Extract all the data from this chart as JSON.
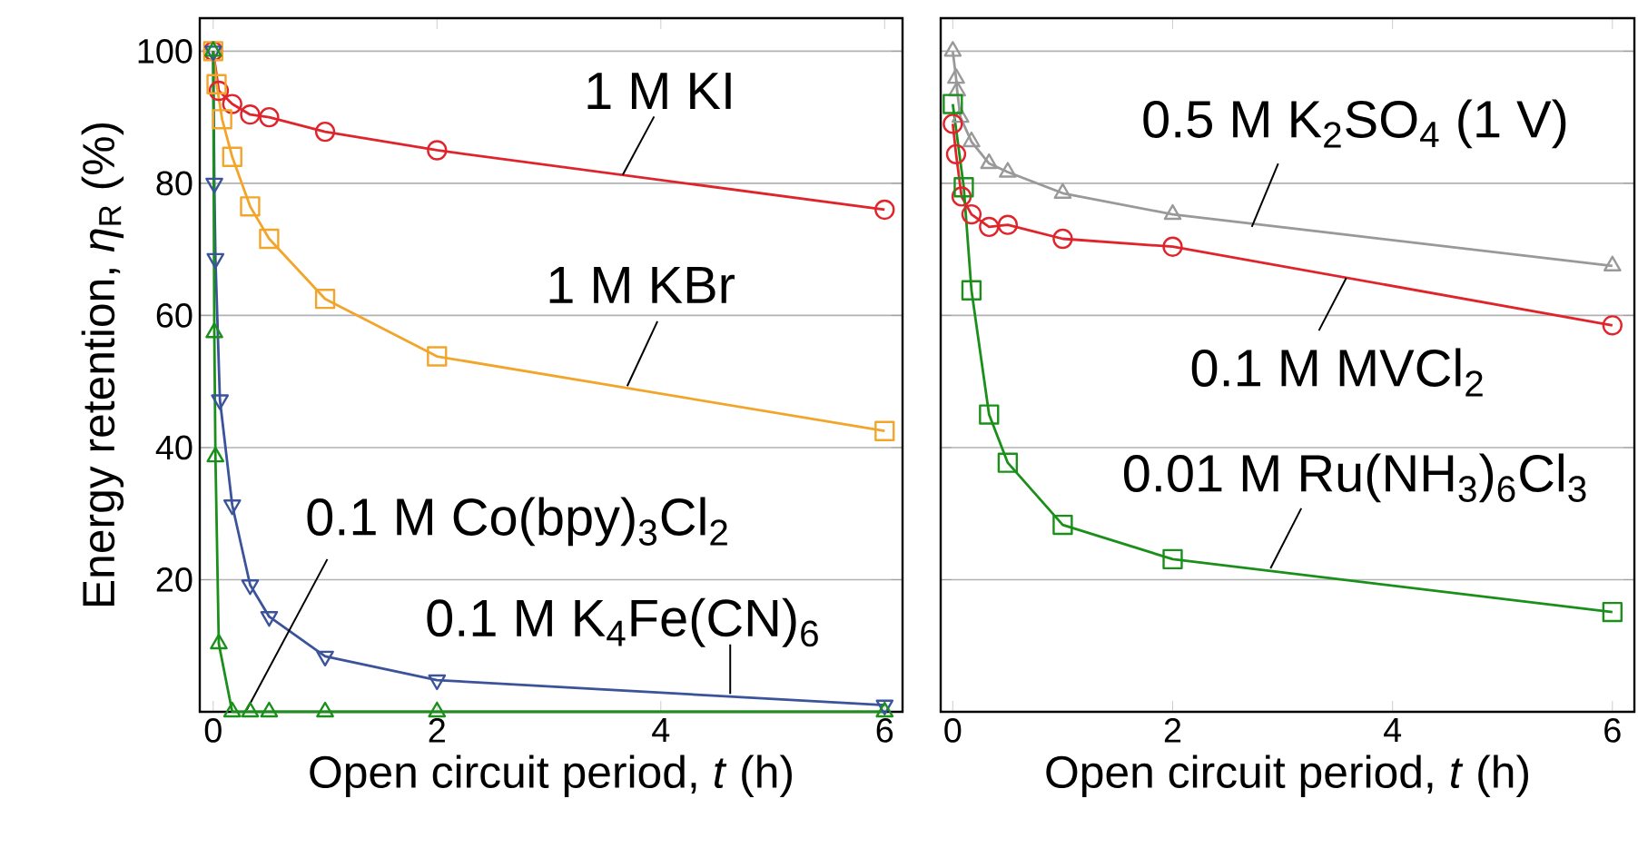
{
  "chart_data": [
    {
      "type": "line",
      "xlabel": "Open circuit period, *t* (h)",
      "ylabel": "Energy retention, *η*$_{R}$ (%)",
      "xlim": [
        -0.12,
        6.16
      ],
      "ylim": [
        0,
        105
      ],
      "xticks": [
        0,
        2,
        4,
        6
      ],
      "yticks": [
        20,
        40,
        60,
        80,
        100
      ],
      "grid": "y",
      "line_style": "solid",
      "series": [
        {
          "name": "1 M KI",
          "color": "#e0242b",
          "marker": "circle",
          "x": [
            0,
            0.05,
            0.17,
            0.33,
            0.5,
            1,
            2,
            6
          ],
          "values": [
            100,
            94,
            92,
            90.4,
            90,
            87.8,
            85,
            76
          ]
        },
        {
          "name": "1 M KBr",
          "color": "#f2a52b",
          "marker": "square",
          "x": [
            0,
            0.03,
            0.08,
            0.17,
            0.33,
            0.5,
            1,
            2,
            6
          ],
          "values": [
            100,
            95,
            89.7,
            84,
            76.5,
            71.6,
            62.5,
            53.8,
            42.5
          ]
        },
        {
          "name": "0.1 M K$_{4}$Fe(CN)$_{6}$",
          "color": "#3a539b",
          "marker": "triangle down",
          "x": [
            0,
            0.01,
            0.02,
            0.06,
            0.17,
            0.33,
            0.5,
            1,
            2,
            6
          ],
          "values": [
            100,
            80,
            68.6,
            47.2,
            31.3,
            19.2,
            14.4,
            8.4,
            4.8,
            1
          ]
        },
        {
          "name": "0.1 M Co(bpy)$_{3}$Cl$_{2}$",
          "color": "#1a8f1a",
          "marker": "triangle",
          "x": [
            0,
            0.01,
            0.02,
            0.05,
            0.17,
            0.33,
            0.5,
            1,
            2,
            6
          ],
          "values": [
            100,
            57.4,
            38.6,
            10.3,
            0,
            0,
            0,
            0,
            0,
            0
          ]
        }
      ]
    },
    {
      "type": "line",
      "xlabel": "Open circuit period, *t* (h)",
      "xlim": [
        -0.11,
        6.2
      ],
      "ylim": [
        0,
        105
      ],
      "xticks": [
        0,
        2,
        4,
        6
      ],
      "yticks": [
        20,
        40,
        60,
        80,
        100
      ],
      "tick_labels": "x",
      "grid": "y",
      "line_style": "solid",
      "series": [
        {
          "name": "0.5 M K$_{2}$SO$_{4}$ (1 V)",
          "color": "#999999",
          "marker": "triangle",
          "x": [
            0,
            0.03,
            0.04,
            0.07,
            0.17,
            0.33,
            0.5,
            1,
            2,
            6
          ],
          "values": [
            100,
            95.9,
            94,
            90,
            86.3,
            83,
            81.7,
            78.5,
            75.3,
            67.5
          ]
        },
        {
          "name": "0.1 M MVCl$_{2}$",
          "color": "#e0242b",
          "marker": "circle",
          "x": [
            0,
            0.03,
            0.08,
            0.17,
            0.33,
            0.5,
            1,
            2,
            6
          ],
          "values": [
            89,
            84.4,
            78,
            75.3,
            73.4,
            73.7,
            71.6,
            70.4,
            58.5
          ]
        },
        {
          "name": "0.01 M Ru(NH$_{3}$)$_{6}$Cl$_{3}$",
          "color": "#1a8f1a",
          "marker": "square",
          "x": [
            0,
            0.1,
            0.17,
            0.33,
            0.5,
            1,
            2,
            6
          ],
          "values": [
            92,
            79.4,
            63.8,
            45,
            37.7,
            28.3,
            23.1,
            15.1
          ]
        }
      ]
    }
  ]
}
